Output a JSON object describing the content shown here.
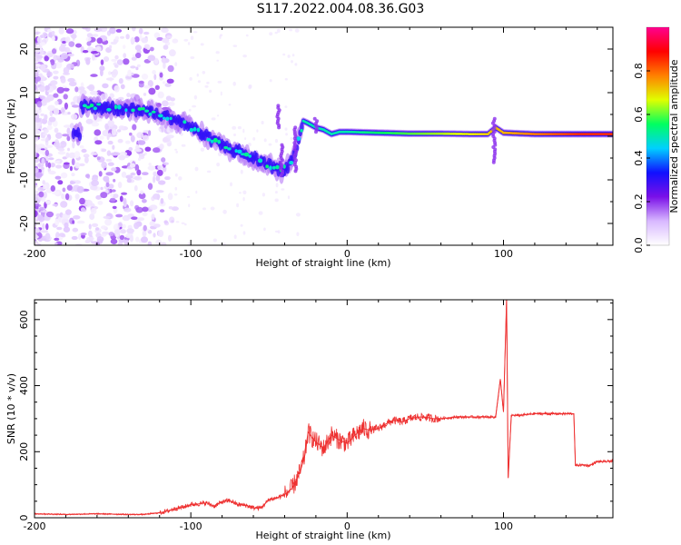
{
  "figure": {
    "title": "S117.2022.004.08.36.G03"
  },
  "chart_data": [
    {
      "type": "heatmap",
      "title": "",
      "xlabel": "Height of straight line (km)",
      "ylabel": "Frequency (Hz)",
      "xlim": [
        -200,
        170
      ],
      "ylim": [
        -25,
        25
      ],
      "xticks": [
        -200,
        -100,
        0,
        100
      ],
      "yticks": [
        -20,
        -10,
        0,
        10,
        20
      ],
      "xtick_labels": [
        "-200",
        "-100",
        "0",
        "100"
      ],
      "ytick_labels": [
        "-20",
        "-10",
        "0",
        "10",
        "20"
      ],
      "colorbar": {
        "label": "Normalized spectral amplitude",
        "range": [
          0,
          1
        ],
        "ticks": [
          0.0,
          0.2,
          0.4,
          0.6,
          0.8
        ],
        "tick_labels": [
          "0.0",
          "0.2",
          "0.4",
          "0.6",
          "0.8"
        ],
        "colormap": [
          "#ffffff",
          "#d8b8ff",
          "#7a10e8",
          "#1010ff",
          "#00d0ff",
          "#00ff60",
          "#e0ff00",
          "#ff8000",
          "#ff0000",
          "#ff0090"
        ]
      },
      "ridge": {
        "x": [
          -170,
          -150,
          -130,
          -110,
          -100,
          -90,
          -80,
          -70,
          -60,
          -50,
          -42,
          -35,
          -28,
          -25,
          -20,
          -15,
          -10,
          -5,
          0,
          20,
          40,
          60,
          80,
          90,
          95,
          100,
          120,
          140,
          170
        ],
        "y": [
          7,
          6.5,
          6,
          4,
          2,
          0,
          -2,
          -3.5,
          -5,
          -6.5,
          -8,
          -6,
          3.5,
          3,
          2,
          1.5,
          0.5,
          1,
          1,
          0.8,
          0.6,
          0.6,
          0.5,
          0.5,
          2,
          0.8,
          0.5,
          0.5,
          0.5
        ]
      },
      "grid": false
    },
    {
      "type": "line",
      "title": "",
      "xlabel": "Height of straight line (km)",
      "ylabel": "SNR (10 * v/v)",
      "xlim": [
        -200,
        170
      ],
      "ylim": [
        0,
        660
      ],
      "xticks": [
        -200,
        -100,
        0,
        100
      ],
      "yticks": [
        0,
        200,
        400,
        600
      ],
      "xtick_labels": [
        "-200",
        "-100",
        "0",
        "100"
      ],
      "ytick_labels": [
        "0",
        "200",
        "400",
        "600"
      ],
      "line_color": "#ee3030",
      "series": [
        {
          "x": [
            -200,
            -180,
            -160,
            -140,
            -130,
            -120,
            -115,
            -110,
            -105,
            -100,
            -95,
            -90,
            -85,
            -80,
            -75,
            -70,
            -65,
            -60,
            -55,
            -50,
            -45,
            -40,
            -35,
            -30,
            -27,
            -25,
            -22,
            -20,
            -15,
            -10,
            -5,
            0,
            5,
            10,
            15,
            20,
            25,
            30,
            35,
            40,
            45,
            50,
            55,
            60,
            70,
            80,
            90,
            95,
            98,
            100,
            102,
            103,
            105,
            110,
            120,
            130,
            140,
            145,
            146,
            150,
            155,
            160,
            165,
            170
          ],
          "y": [
            12,
            10,
            12,
            10,
            10,
            15,
            20,
            28,
            32,
            40,
            42,
            45,
            35,
            48,
            52,
            40,
            38,
            30,
            30,
            55,
            60,
            70,
            90,
            140,
            190,
            260,
            240,
            230,
            210,
            250,
            235,
            225,
            250,
            270,
            265,
            270,
            285,
            295,
            290,
            300,
            305,
            305,
            300,
            300,
            305,
            305,
            305,
            305,
            420,
            320,
            660,
            120,
            310,
            310,
            315,
            315,
            315,
            315,
            158,
            160,
            158,
            170,
            170,
            172
          ]
        }
      ],
      "grid": false
    }
  ]
}
